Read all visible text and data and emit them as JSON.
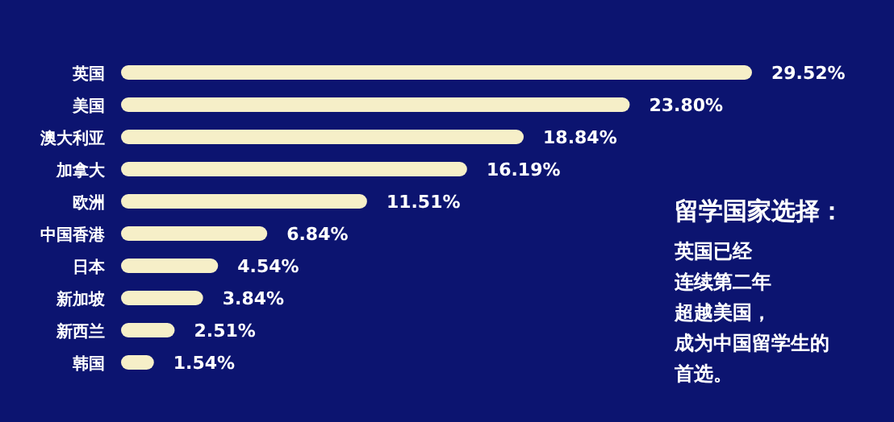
{
  "chart_data": {
    "type": "bar",
    "orientation": "horizontal",
    "title": "留学国家选择：",
    "categories": [
      "英国",
      "美国",
      "澳大利亚",
      "加拿大",
      "欧洲",
      "中国香港",
      "日本",
      "新加坡",
      "新西兰",
      "韩国"
    ],
    "values": [
      29.52,
      23.8,
      18.84,
      16.19,
      11.51,
      6.84,
      4.54,
      3.84,
      2.51,
      1.54
    ],
    "value_labels": [
      "29.52%",
      "23.80%",
      "18.84%",
      "16.19%",
      "11.51%",
      "6.84%",
      "4.54%",
      "3.84%",
      "2.51%",
      "1.54%"
    ],
    "color": "#f6efc8",
    "annotations": [
      "英国已经",
      "连续第二年",
      "超越美国，",
      "成为中国留学生的",
      "首选。"
    ]
  }
}
